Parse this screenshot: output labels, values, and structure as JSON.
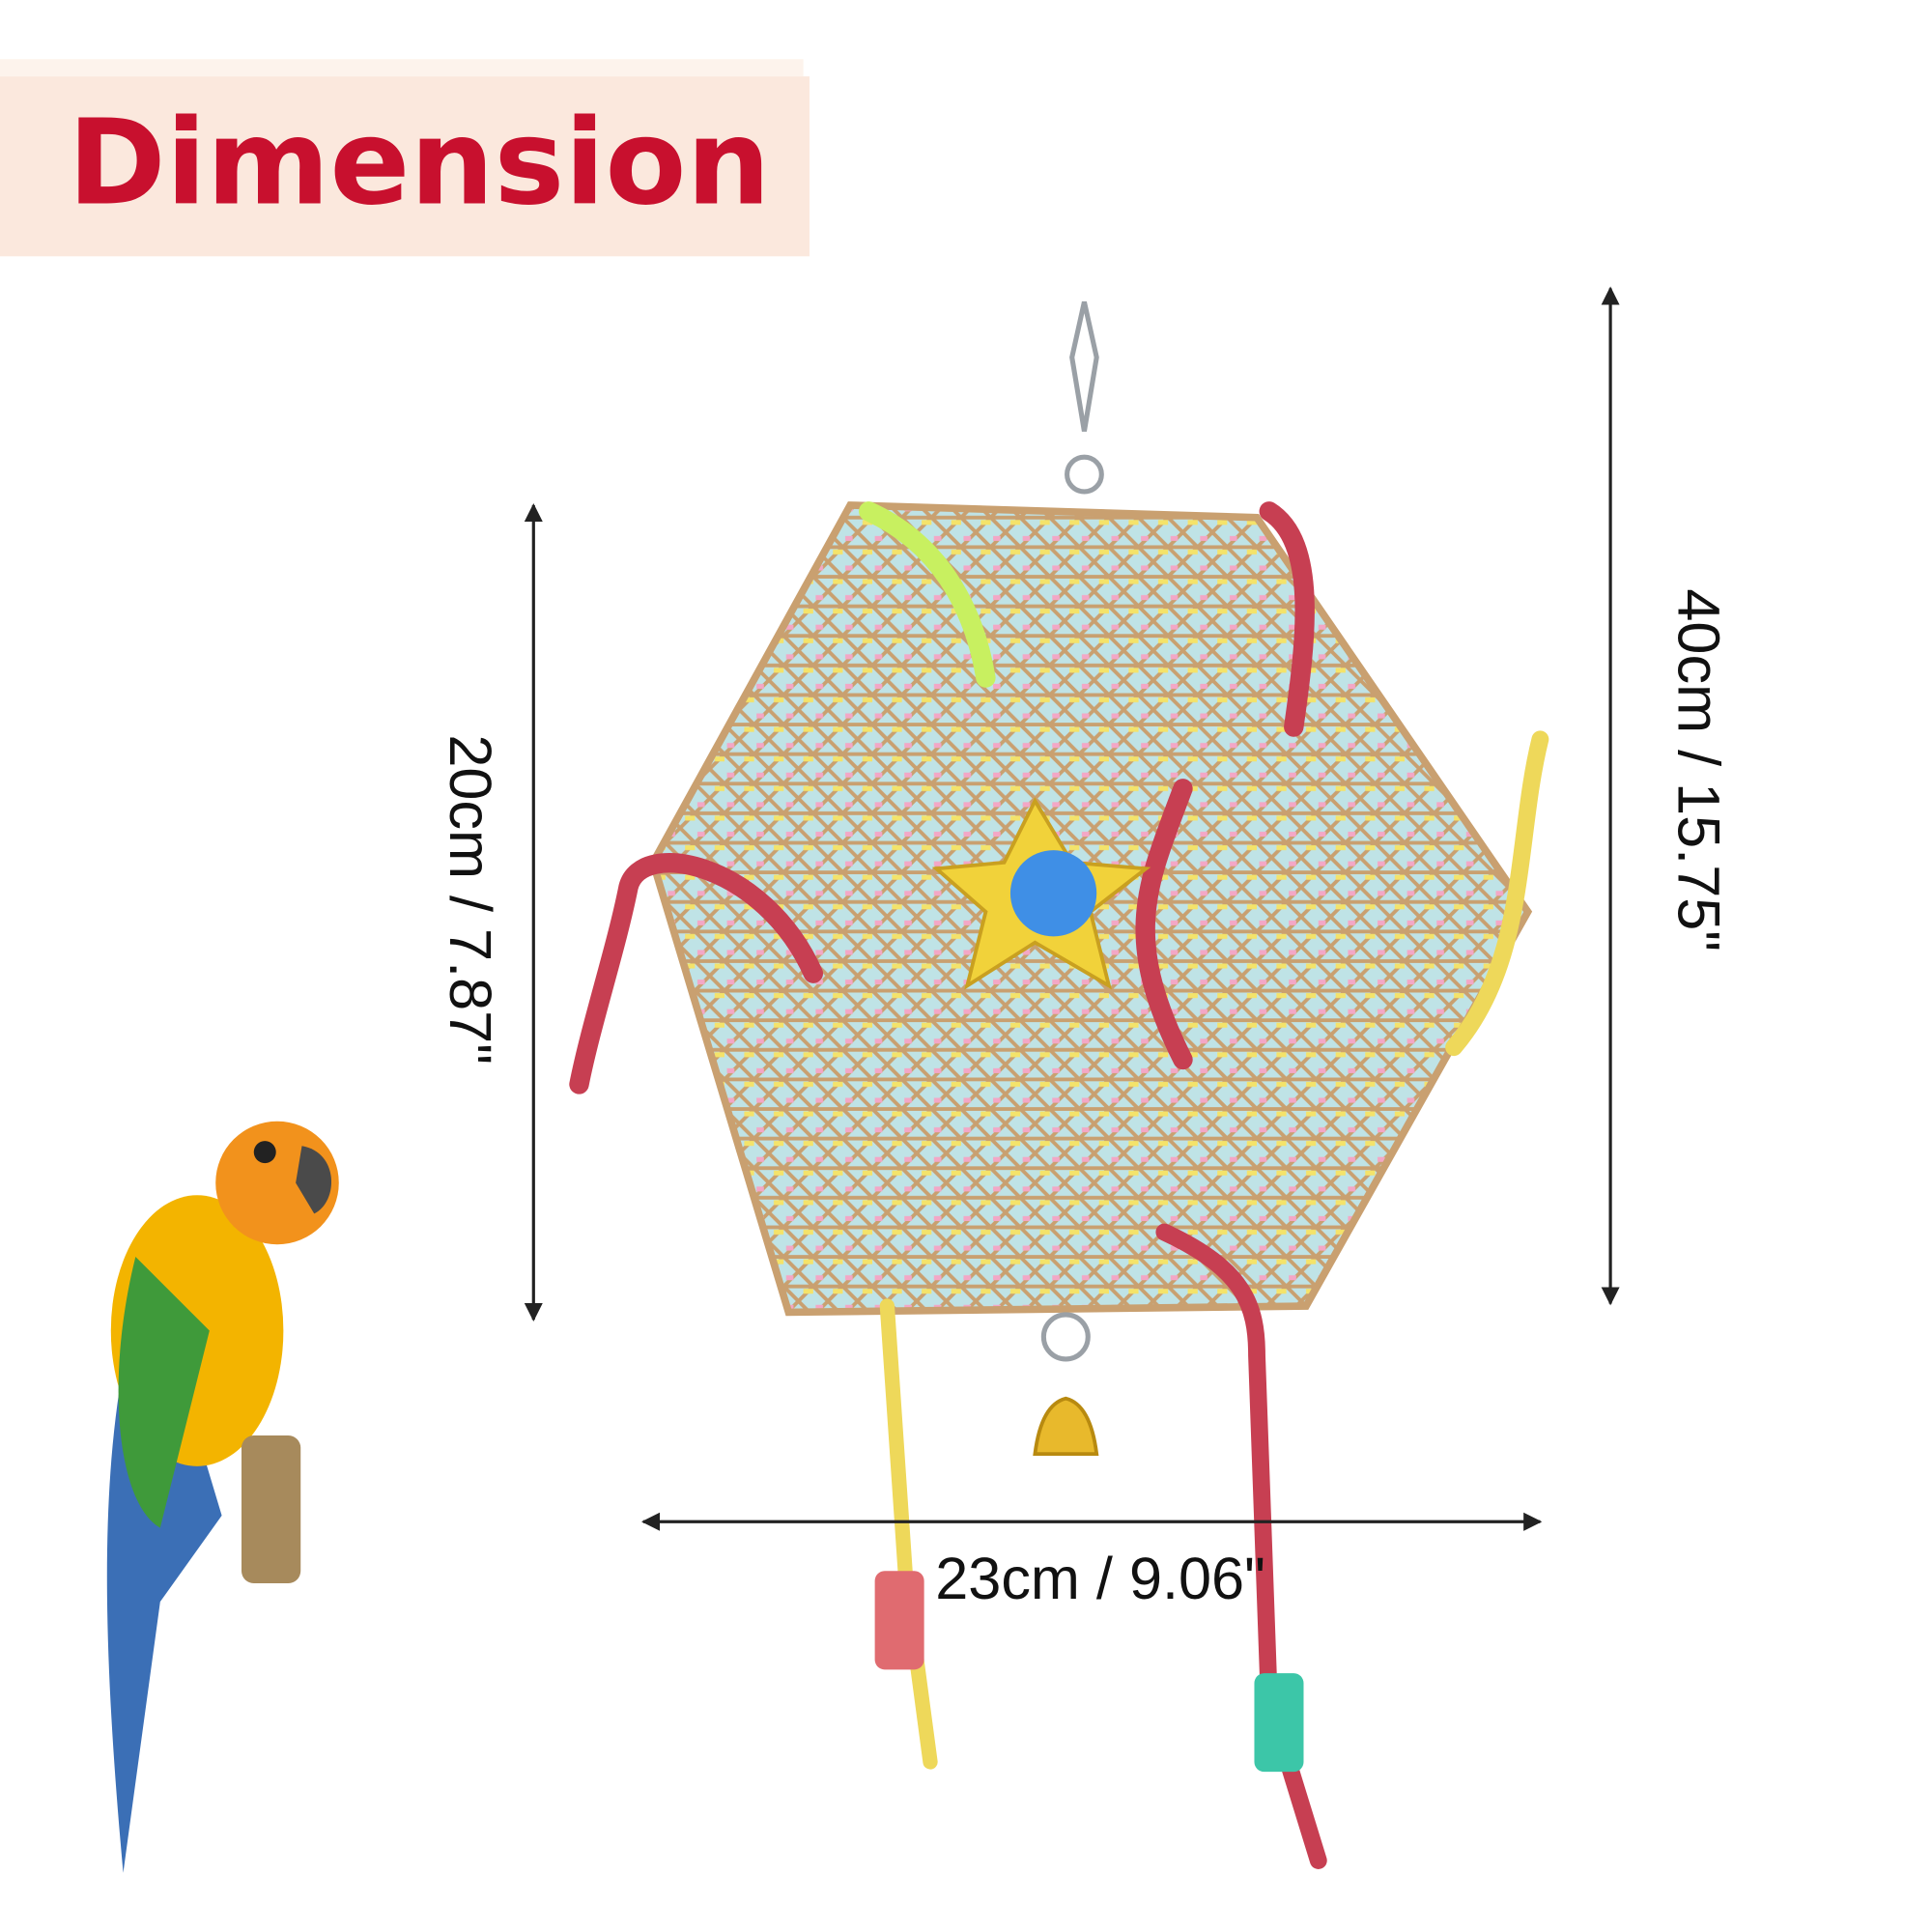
{
  "header": {
    "title": "Dimension"
  },
  "dimensions": {
    "total_height": "40cm / 15.75\"",
    "body_height": "20cm / 7.87\"",
    "width": "23cm / 9.06\""
  }
}
